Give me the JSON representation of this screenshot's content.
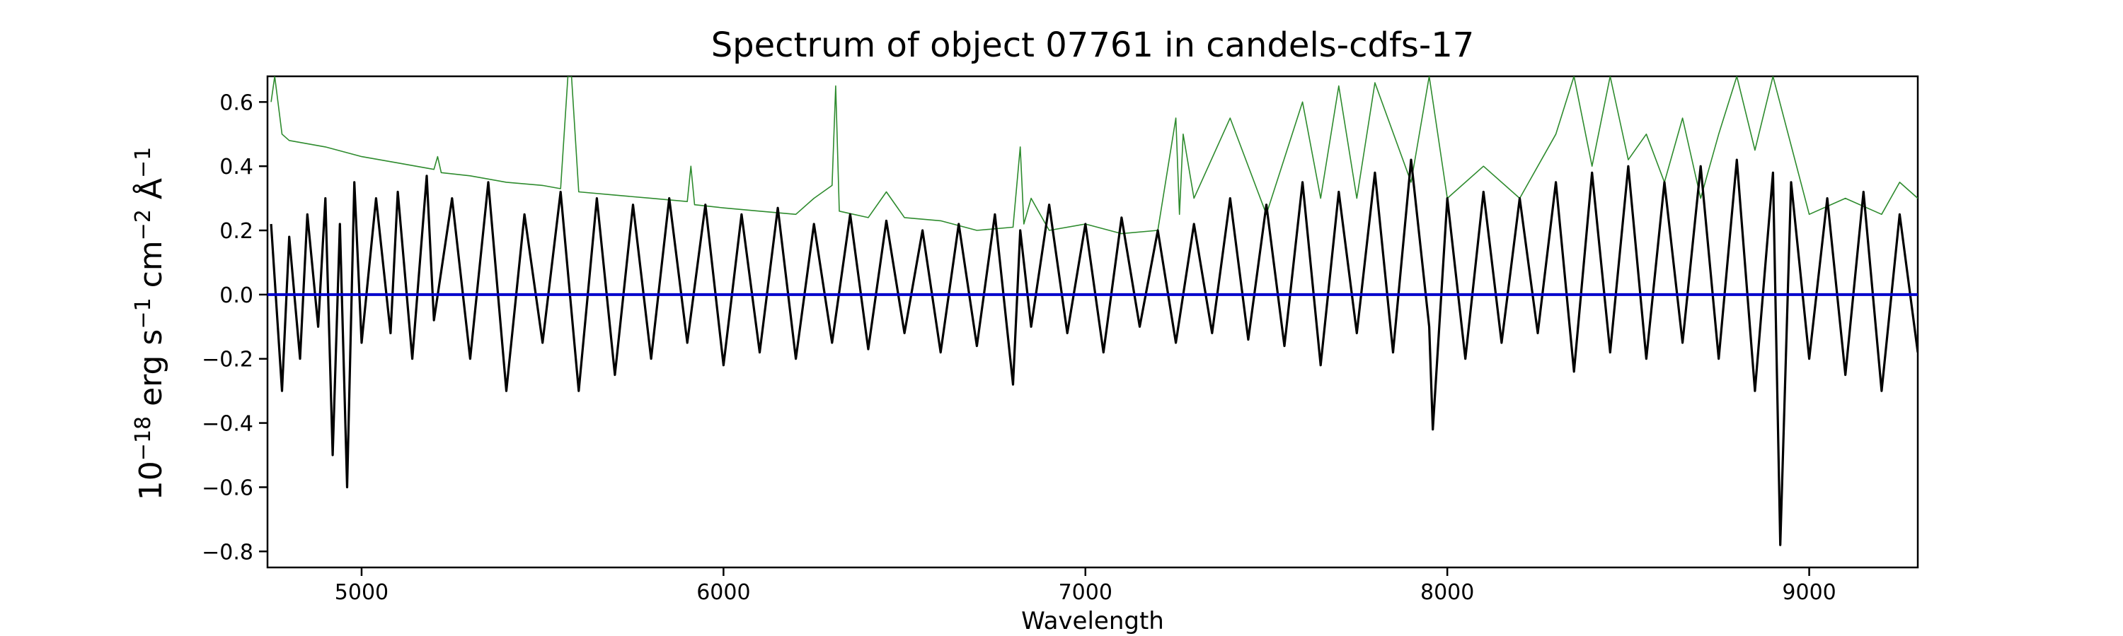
{
  "chart_data": {
    "type": "line",
    "title": "Spectrum of object 07761 in candels-cdfs-17",
    "xlabel": "Wavelength",
    "ylabel_parts": {
      "base": "10",
      "exp1": "−18",
      "erg": " erg s",
      "exp2": "−1",
      "cm": " cm",
      "exp3": "−2",
      "angstrom": " Å",
      "exp4": "−1"
    },
    "xlim": [
      4740,
      9300
    ],
    "ylim": [
      -0.85,
      0.68
    ],
    "x_ticks": [
      5000,
      6000,
      7000,
      8000,
      9000
    ],
    "x_tick_labels": [
      "5000",
      "6000",
      "7000",
      "8000",
      "9000"
    ],
    "y_ticks": [
      -0.8,
      -0.6,
      -0.4,
      -0.2,
      0.0,
      0.2,
      0.4,
      0.6
    ],
    "y_tick_labels": [
      "−0.8",
      "−0.6",
      "−0.4",
      "−0.2",
      "0.0",
      "0.2",
      "0.4",
      "0.6"
    ],
    "colors": {
      "flux": "#000000",
      "error": "#2e8b2e",
      "zero": "#0000cc"
    },
    "zero_level": 0.0,
    "series": [
      {
        "role": "flux",
        "x": [
          4750,
          4780,
          4800,
          4830,
          4850,
          4880,
          4900,
          4920,
          4940,
          4960,
          4980,
          5000,
          5040,
          5080,
          5100,
          5140,
          5180,
          5200,
          5250,
          5300,
          5350,
          5400,
          5450,
          5500,
          5550,
          5600,
          5650,
          5700,
          5750,
          5800,
          5850,
          5900,
          5950,
          6000,
          6050,
          6100,
          6150,
          6200,
          6250,
          6300,
          6350,
          6400,
          6450,
          6500,
          6550,
          6600,
          6650,
          6700,
          6750,
          6800,
          6820,
          6850,
          6900,
          6950,
          7000,
          7050,
          7100,
          7150,
          7200,
          7250,
          7300,
          7350,
          7400,
          7450,
          7500,
          7550,
          7600,
          7650,
          7700,
          7750,
          7800,
          7850,
          7900,
          7950,
          7960,
          8000,
          8050,
          8100,
          8150,
          8200,
          8250,
          8300,
          8350,
          8400,
          8450,
          8500,
          8550,
          8600,
          8650,
          8700,
          8750,
          8800,
          8850,
          8900,
          8920,
          8950,
          9000,
          9050,
          9100,
          9150,
          9200,
          9250,
          9300
        ],
        "values": [
          0.22,
          -0.3,
          0.18,
          -0.2,
          0.25,
          -0.1,
          0.3,
          -0.5,
          0.22,
          -0.6,
          0.35,
          -0.15,
          0.3,
          -0.12,
          0.32,
          -0.2,
          0.37,
          -0.08,
          0.3,
          -0.2,
          0.35,
          -0.3,
          0.25,
          -0.15,
          0.32,
          -0.3,
          0.3,
          -0.25,
          0.28,
          -0.2,
          0.3,
          -0.15,
          0.28,
          -0.22,
          0.25,
          -0.18,
          0.27,
          -0.2,
          0.22,
          -0.15,
          0.25,
          -0.17,
          0.23,
          -0.12,
          0.2,
          -0.18,
          0.22,
          -0.16,
          0.25,
          -0.28,
          0.2,
          -0.1,
          0.28,
          -0.12,
          0.22,
          -0.18,
          0.24,
          -0.1,
          0.2,
          -0.15,
          0.22,
          -0.12,
          0.3,
          -0.14,
          0.28,
          -0.16,
          0.35,
          -0.22,
          0.32,
          -0.12,
          0.38,
          -0.18,
          0.42,
          -0.1,
          -0.42,
          0.3,
          -0.2,
          0.32,
          -0.15,
          0.3,
          -0.12,
          0.35,
          -0.24,
          0.38,
          -0.18,
          0.4,
          -0.2,
          0.35,
          -0.15,
          0.4,
          -0.2,
          0.42,
          -0.3,
          0.38,
          -0.78,
          0.35,
          -0.2,
          0.3,
          -0.25,
          0.32,
          -0.3,
          0.25,
          -0.18
        ]
      },
      {
        "role": "error",
        "x": [
          4750,
          4760,
          4780,
          4800,
          4900,
          5000,
          5100,
          5200,
          5210,
          5220,
          5300,
          5400,
          5500,
          5550,
          5570,
          5580,
          5600,
          5700,
          5800,
          5900,
          5910,
          5920,
          6000,
          6100,
          6200,
          6250,
          6300,
          6310,
          6320,
          6400,
          6450,
          6500,
          6600,
          6700,
          6800,
          6820,
          6830,
          6850,
          6900,
          7000,
          7100,
          7200,
          7250,
          7260,
          7270,
          7300,
          7400,
          7500,
          7600,
          7650,
          7700,
          7750,
          7800,
          7900,
          7950,
          8000,
          8100,
          8200,
          8300,
          8350,
          8400,
          8450,
          8500,
          8550,
          8600,
          8650,
          8700,
          8750,
          8800,
          8850,
          8900,
          9000,
          9100,
          9200,
          9250,
          9300
        ],
        "values": [
          0.6,
          0.68,
          0.5,
          0.48,
          0.46,
          0.43,
          0.41,
          0.39,
          0.43,
          0.38,
          0.37,
          0.35,
          0.34,
          0.33,
          0.68,
          0.68,
          0.32,
          0.31,
          0.3,
          0.29,
          0.4,
          0.28,
          0.27,
          0.26,
          0.25,
          0.3,
          0.34,
          0.65,
          0.26,
          0.24,
          0.32,
          0.24,
          0.23,
          0.2,
          0.21,
          0.46,
          0.22,
          0.3,
          0.2,
          0.22,
          0.19,
          0.2,
          0.55,
          0.25,
          0.5,
          0.3,
          0.55,
          0.25,
          0.6,
          0.3,
          0.65,
          0.3,
          0.66,
          0.35,
          0.68,
          0.3,
          0.4,
          0.3,
          0.5,
          0.68,
          0.4,
          0.68,
          0.42,
          0.5,
          0.35,
          0.55,
          0.3,
          0.5,
          0.68,
          0.45,
          0.68,
          0.25,
          0.3,
          0.25,
          0.35,
          0.3
        ]
      }
    ]
  }
}
